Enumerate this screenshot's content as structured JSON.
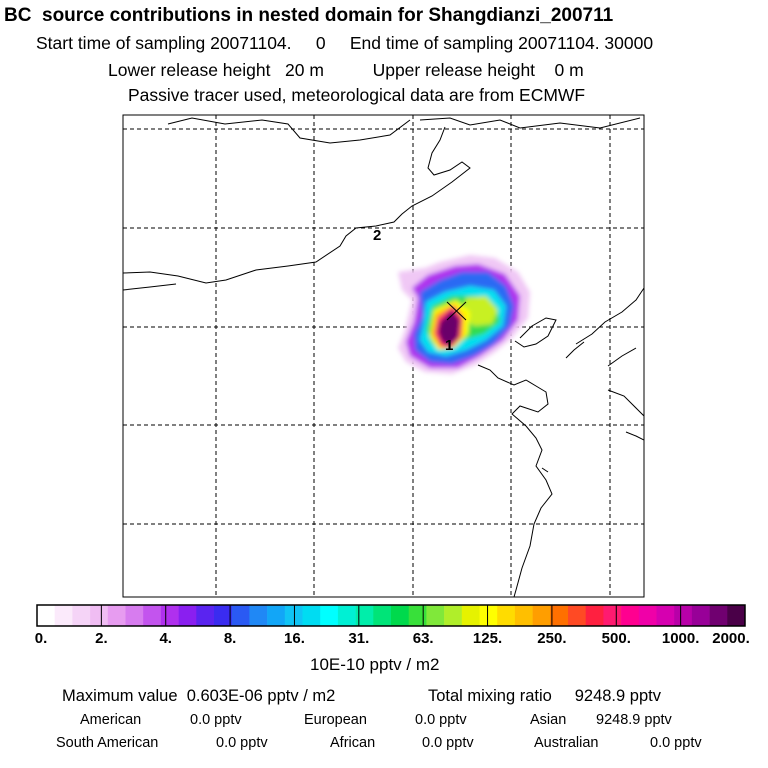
{
  "header": {
    "title": "BC  source contributions in nested domain for Shangdianzi_200711",
    "line1": "Start time of sampling 20071104.     0     End time of sampling 20071104. 30000",
    "line2": "Lower release height   20 m          Upper release height    0 m",
    "line3": "Passive tracer used, meteorological data are from ECMWF"
  },
  "map": {
    "markers": [
      "1",
      "2"
    ]
  },
  "colorbar": {
    "ticks": [
      "0.",
      "2.",
      "4.",
      "8.",
      "16.",
      "31.",
      "63.",
      "125.",
      "250.",
      "500.",
      "1000.",
      "2000."
    ],
    "unit": "10E-10 pptv / m2",
    "colors": [
      "#ffffff",
      "#fbeafb",
      "#f5d4f7",
      "#f0bdf3",
      "#e79cf0",
      "#d77cef",
      "#c354ee",
      "#b030ee",
      "#8a1ff0",
      "#5a24f0",
      "#3a2cf0",
      "#2a5af3",
      "#2088f5",
      "#12a6f7",
      "#10c4f5",
      "#00dcf2",
      "#00ffff",
      "#00f0d4",
      "#00eeaa",
      "#00e478",
      "#00d94c",
      "#38e03a",
      "#80e83a",
      "#b0ee2a",
      "#e6f200",
      "#ffff00",
      "#ffdc00",
      "#ffbf00",
      "#ff9e00",
      "#ff7000",
      "#ff4a24",
      "#ff2040",
      "#ff1a70",
      "#ff0090",
      "#f000a8",
      "#d600b0",
      "#b800a8",
      "#980098",
      "#700070",
      "#4a0048"
    ]
  },
  "stats": {
    "max_label": "Maximum value  0.603E-06 pptv / m2",
    "total_label": "Total mixing ratio     9248.9 pptv",
    "american_label": "American",
    "american_value": "0.0 pptv",
    "european_label": "European",
    "european_value": "0.0 pptv",
    "asian_label": "Asian",
    "asian_value": "9248.9 pptv",
    "south_american_label": "South American",
    "south_american_value": "0.0 pptv",
    "african_label": "African",
    "african_value": "0.0 pptv",
    "australian_label": "Australian",
    "australian_value": "0.0 pptv"
  }
}
